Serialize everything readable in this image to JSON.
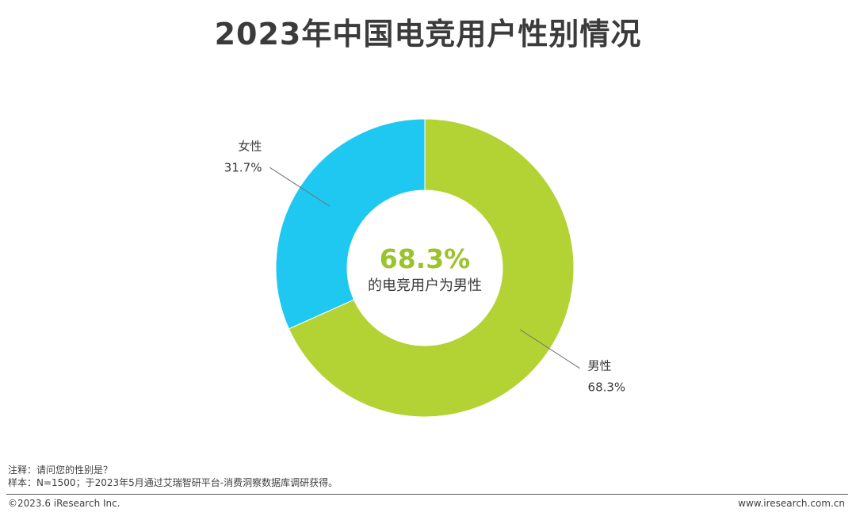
{
  "title": "2023年中国电竞用户性别情况",
  "chart_data": {
    "type": "pie",
    "donut": true,
    "slices": [
      {
        "label": "男性",
        "value": 68.3,
        "value_text": "68.3%",
        "color": "#b3d334"
      },
      {
        "label": "女性",
        "value": 31.7,
        "value_text": "31.7%",
        "color": "#1fc8f1"
      }
    ],
    "center": {
      "value": "68.3%",
      "text": "的电竞用户为男性",
      "value_color": "#9bc32a"
    }
  },
  "notes": {
    "note": "注释：请问您的性别是？",
    "sample": "样本：N=1500；于2023年5月通过艾瑞智研平台-消费洞察数据库调研获得。"
  },
  "footer": {
    "copyright": "©2023.6 iResearch Inc.",
    "website": "www.iresearch.com.cn"
  }
}
